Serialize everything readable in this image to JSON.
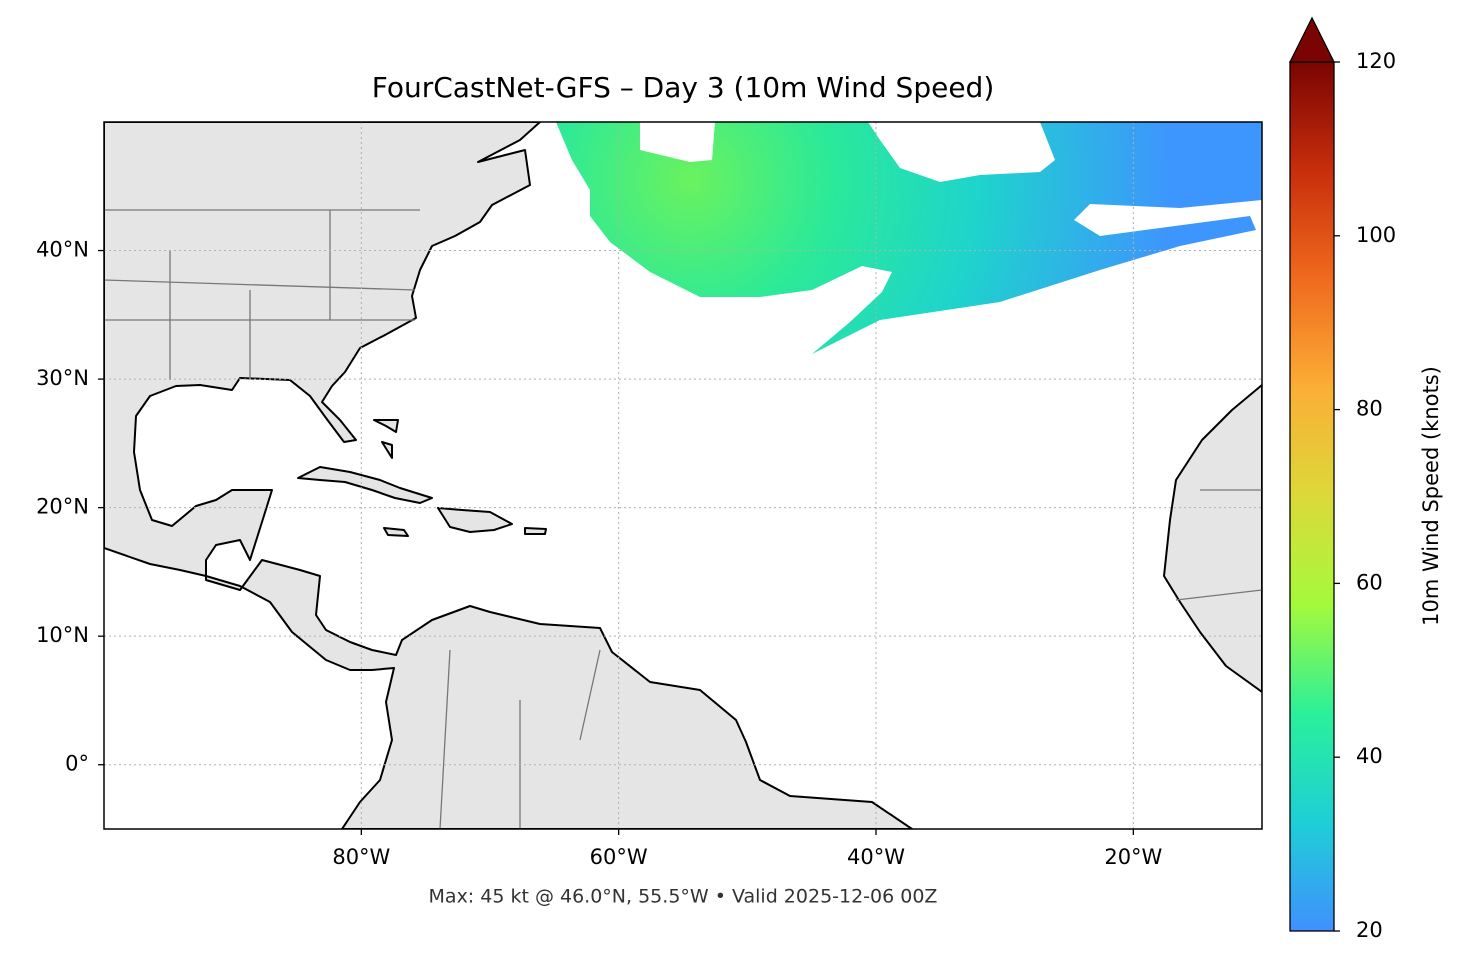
{
  "chart_data": {
    "type": "map",
    "title": "FourCastNet-GFS – Day 3 (10m Wind Speed)",
    "footer": "Max: 45 kt @ 46.0°N, 55.5°W • Valid 2025-12-06 00Z",
    "xlim": [
      -100,
      -10
    ],
    "ylim": [
      -5,
      50
    ],
    "xticks": [
      {
        "value": -80,
        "label": "80°W"
      },
      {
        "value": -60,
        "label": "60°W"
      },
      {
        "value": -40,
        "label": "40°W"
      },
      {
        "value": -20,
        "label": "20°W"
      }
    ],
    "yticks": [
      {
        "value": 0,
        "label": "0°"
      },
      {
        "value": 10,
        "label": "10°N"
      },
      {
        "value": 20,
        "label": "20°N"
      },
      {
        "value": 30,
        "label": "30°N"
      },
      {
        "value": 40,
        "label": "40°N"
      }
    ],
    "grid": true,
    "colorbar": {
      "label": "10m Wind Speed (knots)",
      "lim": [
        20,
        120
      ],
      "ticks": [
        20,
        40,
        60,
        80,
        100,
        120
      ],
      "extend": "max",
      "colormap": [
        "#4090fe",
        "#1ecfd6",
        "#2af09a",
        "#a4f93c",
        "#dcd93a",
        "#fbae35",
        "#f06a1e",
        "#c82e0b",
        "#7a0403"
      ]
    }
  }
}
